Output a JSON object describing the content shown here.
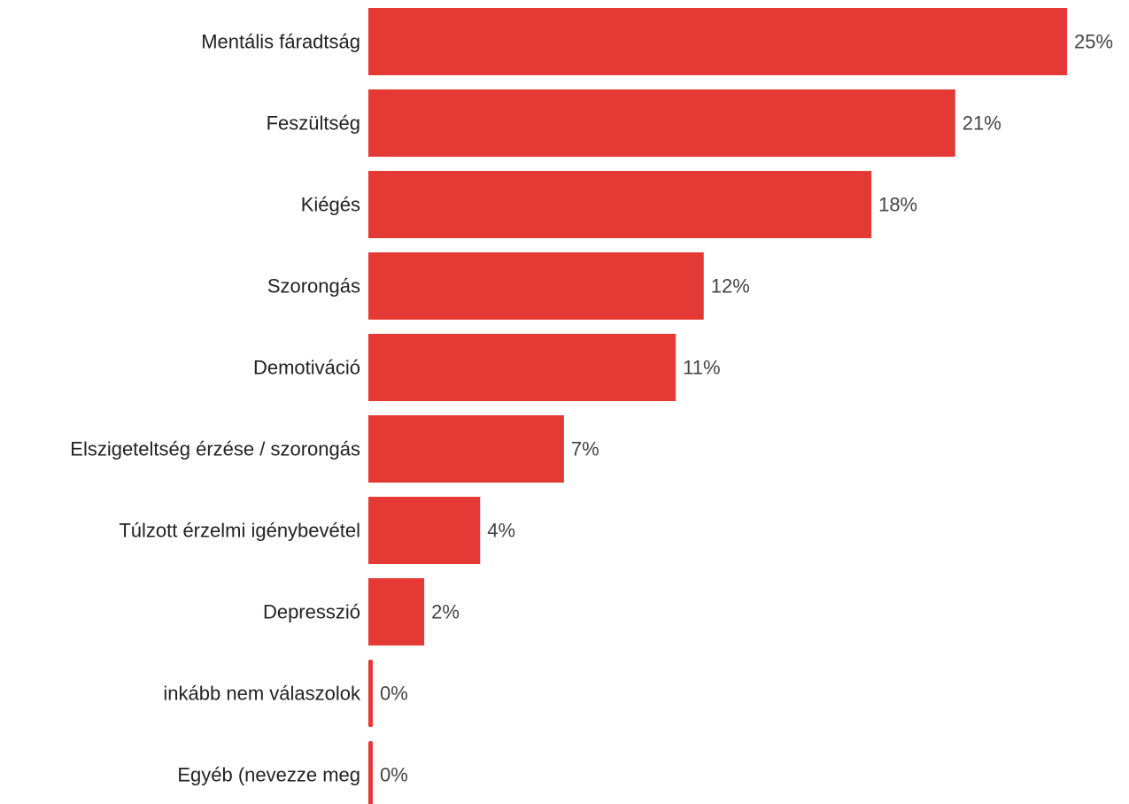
{
  "chart_data": {
    "type": "bar",
    "orientation": "horizontal",
    "categories": [
      "Mentális fáradtság",
      "Feszültség",
      "Kiégés",
      "Szorongás",
      "Demotiváció",
      "Elszigeteltség érzése / szorongás",
      "Túlzott érzelmi igénybevétel",
      "Depresszió",
      "inkább nem válaszolok",
      "Egyéb (nevezze meg"
    ],
    "values": [
      25,
      21,
      18,
      12,
      11,
      7,
      4,
      2,
      0,
      0
    ],
    "value_labels": [
      "25%",
      "21%",
      "18%",
      "12%",
      "11%",
      "7%",
      "4%",
      "2%",
      "0%",
      "0%"
    ],
    "unit": "%",
    "xlim": [
      0,
      25
    ],
    "grid": false,
    "legend": "none",
    "bar_color": "#e53935"
  }
}
